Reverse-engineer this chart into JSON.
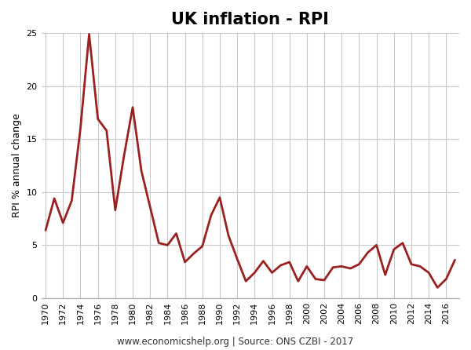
{
  "title": "UK inflation - RPI",
  "ylabel": "RPI % annual change",
  "footnote": "www.economicshelp.org | Source: ONS CZBI - 2017",
  "line_color": "#9B2020",
  "line_width": 2.0,
  "background_color": "#ffffff",
  "grid_color": "#c8c8c8",
  "years": [
    1970,
    1971,
    1972,
    1973,
    1974,
    1975,
    1976,
    1977,
    1978,
    1979,
    1980,
    1981,
    1982,
    1983,
    1984,
    1985,
    1986,
    1987,
    1988,
    1989,
    1990,
    1991,
    1992,
    1993,
    1994,
    1995,
    1996,
    1997,
    1998,
    1999,
    2000,
    2001,
    2002,
    2003,
    2004,
    2005,
    2006,
    2007,
    2008,
    2009,
    2010,
    2011,
    2012,
    2013,
    2014,
    2015,
    2016,
    2017
  ],
  "values": [
    6.4,
    9.4,
    7.1,
    9.2,
    16.0,
    24.9,
    16.9,
    15.8,
    8.3,
    13.4,
    18.0,
    12.0,
    8.6,
    5.2,
    5.0,
    6.1,
    3.4,
    4.2,
    4.9,
    7.8,
    9.5,
    5.9,
    3.7,
    1.6,
    2.4,
    3.5,
    2.4,
    3.1,
    3.4,
    1.6,
    3.0,
    1.8,
    1.7,
    2.9,
    3.0,
    2.8,
    3.2,
    4.3,
    5.0,
    2.2,
    4.6,
    5.2,
    3.2,
    3.0,
    2.4,
    1.0,
    1.8,
    3.6
  ],
  "xlim": [
    1969.5,
    2017.5
  ],
  "ylim": [
    0,
    25
  ],
  "yticks": [
    0,
    5,
    10,
    15,
    20,
    25
  ],
  "xticks": [
    1970,
    1972,
    1974,
    1976,
    1978,
    1980,
    1982,
    1984,
    1986,
    1988,
    1990,
    1992,
    1994,
    1996,
    1998,
    2000,
    2002,
    2004,
    2006,
    2008,
    2010,
    2012,
    2014,
    2016
  ],
  "title_fontsize": 15,
  "ylabel_fontsize": 9,
  "tick_fontsize": 8,
  "footnote_fontsize": 8.5
}
